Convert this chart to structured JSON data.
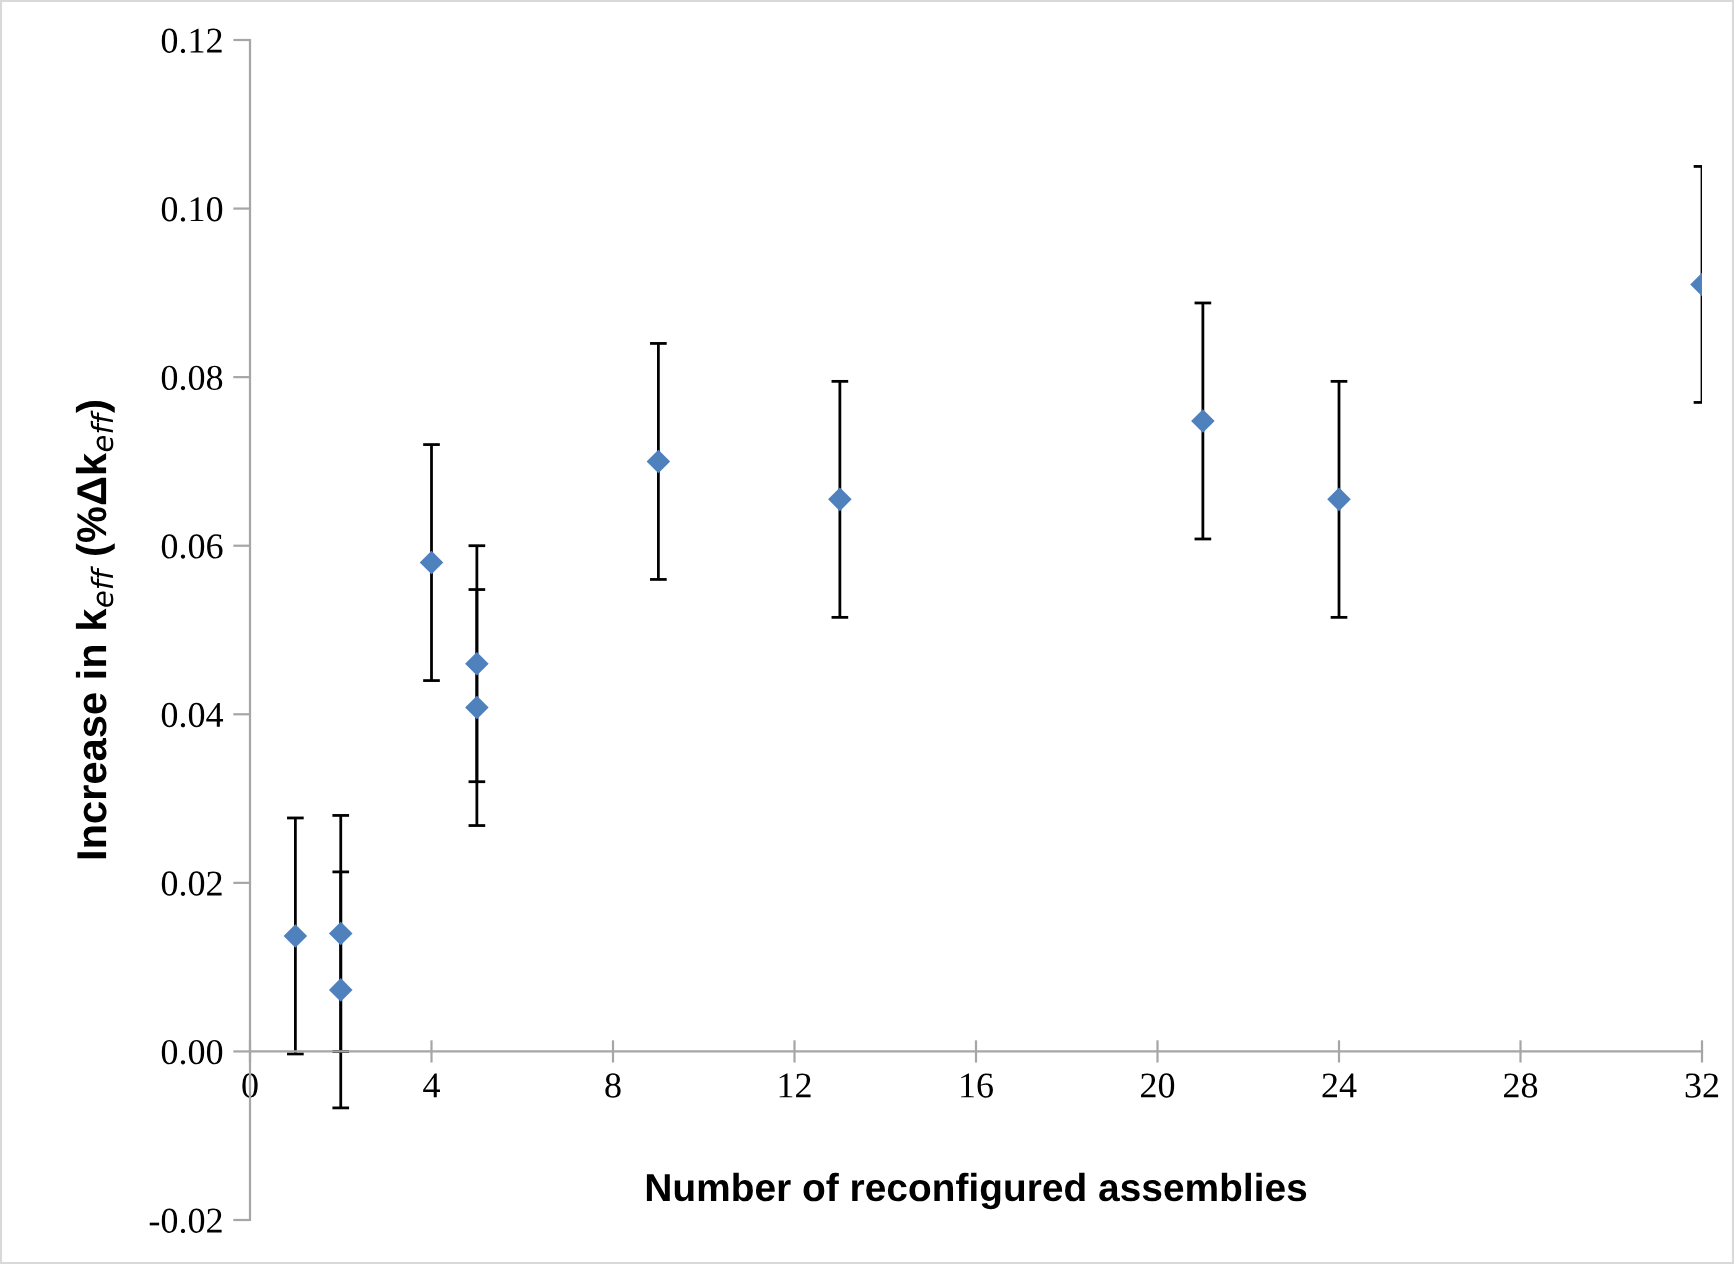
{
  "chart_data": {
    "type": "scatter",
    "xlabel": "Number of reconfigured assemblies",
    "ylabel": "Increase in k$_{eff}$ (%Δk$_{eff}$)",
    "x": [
      1,
      2,
      2,
      4,
      5,
      5,
      9,
      13,
      21,
      24,
      32
    ],
    "series": [
      {
        "color": "#4f81bd",
        "values": [
          0.0137,
          0.014,
          0.0073,
          0.058,
          0.046,
          0.0408,
          0.07,
          0.0655,
          0.0748,
          0.0655,
          0.091
        ],
        "errors": [
          0.014,
          0.014,
          0.014,
          0.014,
          0.014,
          0.014,
          0.014,
          0.014,
          0.014,
          0.014,
          0.014
        ]
      }
    ],
    "marker": "diamond",
    "xlim": [
      0,
      32
    ],
    "xticks": [
      0,
      4,
      8,
      12,
      16,
      20,
      24,
      28,
      32
    ],
    "ylim": [
      -0.02,
      0.12
    ],
    "yticks": [
      {
        "value": -0.02,
        "label": "-0.02"
      },
      {
        "value": 0,
        "label": "0.00"
      },
      {
        "value": 0.02,
        "label": "0.02"
      },
      {
        "value": 0.04,
        "label": "0.04"
      },
      {
        "value": 0.06,
        "label": "0.06"
      },
      {
        "value": 0.08,
        "label": "0.08"
      },
      {
        "value": 0.1,
        "label": "0.10"
      },
      {
        "value": 0.12,
        "label": "0.12"
      }
    ],
    "grid": false,
    "legend": false
  }
}
